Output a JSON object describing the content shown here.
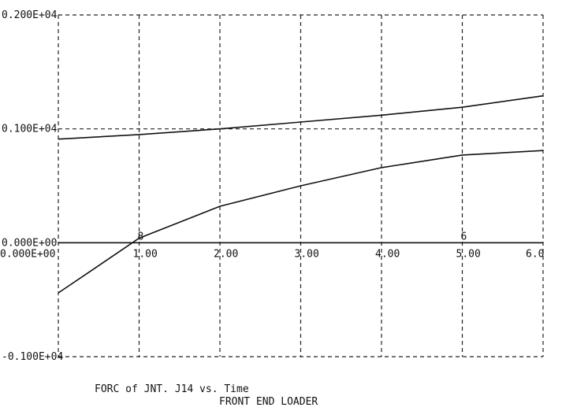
{
  "chart_data": {
    "type": "line",
    "title": "FORC of JNT. J14  vs. Time",
    "subtitle": "FRONT END LOADER",
    "xlim": [
      0,
      6
    ],
    "ylim": [
      -1000,
      2000
    ],
    "grid": true,
    "x_ticks": [
      {
        "value": 0,
        "label": "0.000E+00"
      },
      {
        "value": 1,
        "label": "1.00"
      },
      {
        "value": 2,
        "label": "2.00"
      },
      {
        "value": 3,
        "label": "3.00"
      },
      {
        "value": 4,
        "label": "4.00"
      },
      {
        "value": 5,
        "label": "5.00"
      },
      {
        "value": 6,
        "label": "6.0"
      }
    ],
    "y_ticks": [
      {
        "value": 2000,
        "label": "0.200E+04"
      },
      {
        "value": 1000,
        "label": "0.100E+04"
      },
      {
        "value": 0,
        "label": "0.000E+00"
      },
      {
        "value": -1000,
        "label": "-0.100E+04"
      }
    ],
    "series": [
      {
        "marker": "",
        "x": [
          0,
          1,
          2,
          3,
          4,
          5,
          6
        ],
        "y": [
          910,
          950,
          1000,
          1060,
          1120,
          1190,
          1290
        ]
      },
      {
        "marker": "",
        "x": [
          0,
          0.5,
          1,
          1.5,
          2,
          3,
          4,
          5,
          6
        ],
        "y": [
          -440,
          -200,
          40,
          180,
          320,
          500,
          660,
          770,
          810
        ]
      },
      {
        "marker": "8",
        "marker_x": 1.0,
        "x": [
          0,
          1,
          2,
          3,
          4,
          5,
          6
        ],
        "y": [
          0,
          0,
          0,
          0,
          0,
          0,
          0
        ]
      },
      {
        "marker": "6",
        "marker_x": 5.0,
        "x": [],
        "y": []
      }
    ]
  }
}
